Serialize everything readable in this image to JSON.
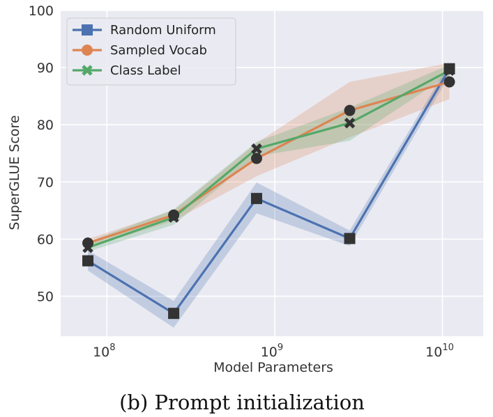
{
  "chart_data": {
    "type": "line",
    "xscale": "log",
    "xlabel": "Model Parameters",
    "ylabel": "SuperGLUE Score",
    "xlim": [
      53000000,
      17500000000
    ],
    "ylim": [
      43,
      100
    ],
    "x_ticks": [
      {
        "value": 100000000,
        "base": "10",
        "exp": "8"
      },
      {
        "value": 1000000000,
        "base": "10",
        "exp": "9"
      },
      {
        "value": 10000000000,
        "base": "10",
        "exp": "10"
      }
    ],
    "y_ticks": [
      50,
      60,
      70,
      80,
      90,
      100
    ],
    "grid": true,
    "legend_position": "top-left",
    "x": [
      77000000,
      250000000,
      780000000,
      2800000000,
      11000000000
    ],
    "series": [
      {
        "name": "Random Uniform",
        "color": "#4c72b0",
        "marker": "square",
        "values": [
          56.2,
          47.0,
          67.1,
          60.1,
          89.8
        ],
        "band_lower": [
          54.5,
          44.5,
          64.5,
          58.8,
          88.6
        ],
        "band_upper": [
          58.0,
          49.2,
          69.9,
          61.5,
          90.8
        ]
      },
      {
        "name": "Sampled Vocab",
        "color": "#dd8452",
        "marker": "circle",
        "values": [
          59.3,
          64.2,
          74.1,
          82.5,
          87.5
        ],
        "band_lower": [
          58.5,
          63.2,
          71.0,
          77.8,
          84.5
        ],
        "band_upper": [
          60.0,
          65.0,
          76.8,
          87.5,
          90.8
        ]
      },
      {
        "name": "Class Label",
        "color": "#55a868",
        "marker": "x",
        "values": [
          58.5,
          63.8,
          75.8,
          80.3,
          89.5
        ],
        "band_lower": [
          57.8,
          62.5,
          74.5,
          77.2,
          88.8
        ],
        "band_upper": [
          59.5,
          65.2,
          77.0,
          83.0,
          90.5
        ]
      }
    ]
  },
  "caption": "(b) Prompt initialization"
}
